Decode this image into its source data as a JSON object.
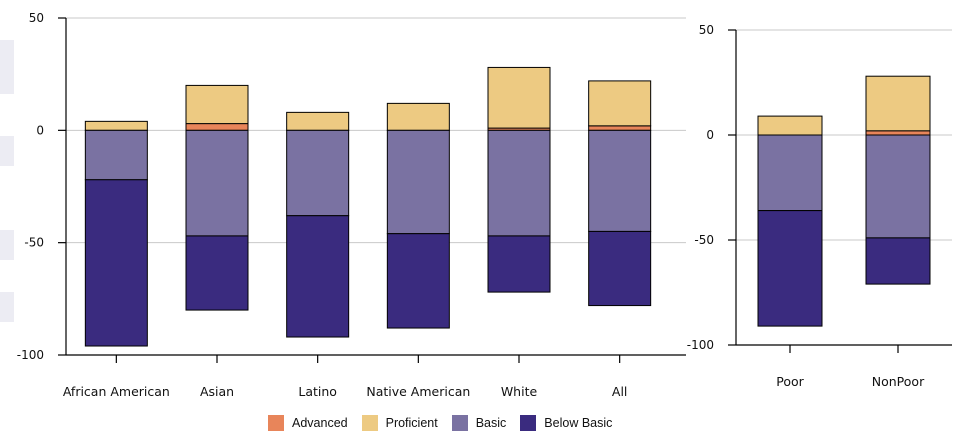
{
  "legend": {
    "items": [
      {
        "label": "Advanced",
        "color": "#e8855a"
      },
      {
        "label": "Proficient",
        "color": "#edca82"
      },
      {
        "label": "Basic",
        "color": "#7a72a2"
      },
      {
        "label": "Below Basic",
        "color": "#3a2b7f"
      }
    ]
  },
  "chart_data": [
    {
      "type": "bar",
      "stacked": true,
      "title": "",
      "xlabel": "",
      "ylabel": "",
      "ylim": [
        -100,
        50
      ],
      "yticks": [
        50,
        0,
        -50,
        -100
      ],
      "categories": [
        "African American",
        "Asian",
        "Latino",
        "Native American",
        "White",
        "All"
      ],
      "series": [
        {
          "name": "Advanced",
          "color": "#e8855a",
          "values": [
            0,
            3,
            0,
            0,
            1,
            2
          ]
        },
        {
          "name": "Proficient",
          "color": "#edca82",
          "values": [
            4,
            17,
            8,
            12,
            27,
            20
          ]
        },
        {
          "name": "Basic",
          "color": "#7a72a2",
          "values": [
            -22,
            -47,
            -38,
            -46,
            -47,
            -45
          ]
        },
        {
          "name": "Below Basic",
          "color": "#3a2b7f",
          "values": [
            -74,
            -33,
            -54,
            -42,
            -25,
            -33
          ]
        }
      ],
      "grid": true
    },
    {
      "type": "bar",
      "stacked": true,
      "title": "",
      "xlabel": "",
      "ylabel": "",
      "ylim": [
        -100,
        50
      ],
      "yticks": [
        50,
        0,
        -50,
        -100
      ],
      "categories": [
        "Poor",
        "NonPoor"
      ],
      "series": [
        {
          "name": "Advanced",
          "color": "#e8855a",
          "values": [
            0,
            2
          ]
        },
        {
          "name": "Proficient",
          "color": "#edca82",
          "values": [
            9,
            26
          ]
        },
        {
          "name": "Basic",
          "color": "#7a72a2",
          "values": [
            -36,
            -49
          ]
        },
        {
          "name": "Below Basic",
          "color": "#3a2b7f",
          "values": [
            -55,
            -22
          ]
        }
      ],
      "grid": true
    }
  ]
}
